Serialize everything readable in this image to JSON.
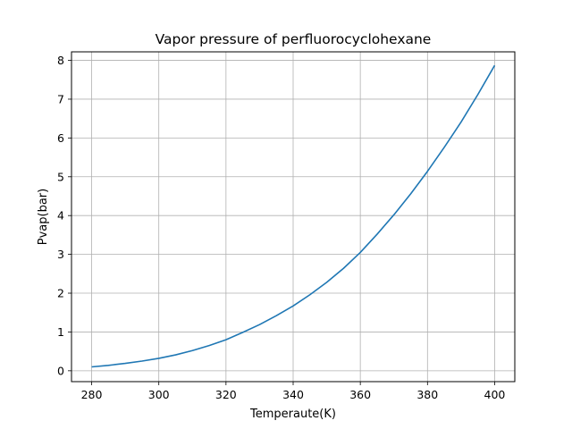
{
  "chart_data": {
    "type": "line",
    "title": "Vapor pressure of perfluorocyclohexane",
    "xlabel": "Temperaute(K)",
    "ylabel": "Pvap(bar)",
    "xlim": [
      274,
      406
    ],
    "ylim": [
      -0.28,
      8.22
    ],
    "xticks": [
      280,
      300,
      320,
      340,
      360,
      380,
      400
    ],
    "yticks": [
      0,
      1,
      2,
      3,
      4,
      5,
      6,
      7,
      8
    ],
    "grid": true,
    "series": [
      {
        "color": "#1f77b4",
        "x": [
          280,
          285,
          290,
          295,
          300,
          305,
          310,
          315,
          320,
          325,
          330,
          335,
          340,
          345,
          350,
          355,
          360,
          365,
          370,
          375,
          380,
          385,
          390,
          395,
          400
        ],
        "y": [
          0.1,
          0.14,
          0.19,
          0.25,
          0.32,
          0.41,
          0.52,
          0.65,
          0.8,
          0.99,
          1.19,
          1.42,
          1.67,
          1.96,
          2.28,
          2.64,
          3.05,
          3.52,
          4.02,
          4.56,
          5.14,
          5.76,
          6.41,
          7.12,
          7.87
        ]
      }
    ]
  }
}
